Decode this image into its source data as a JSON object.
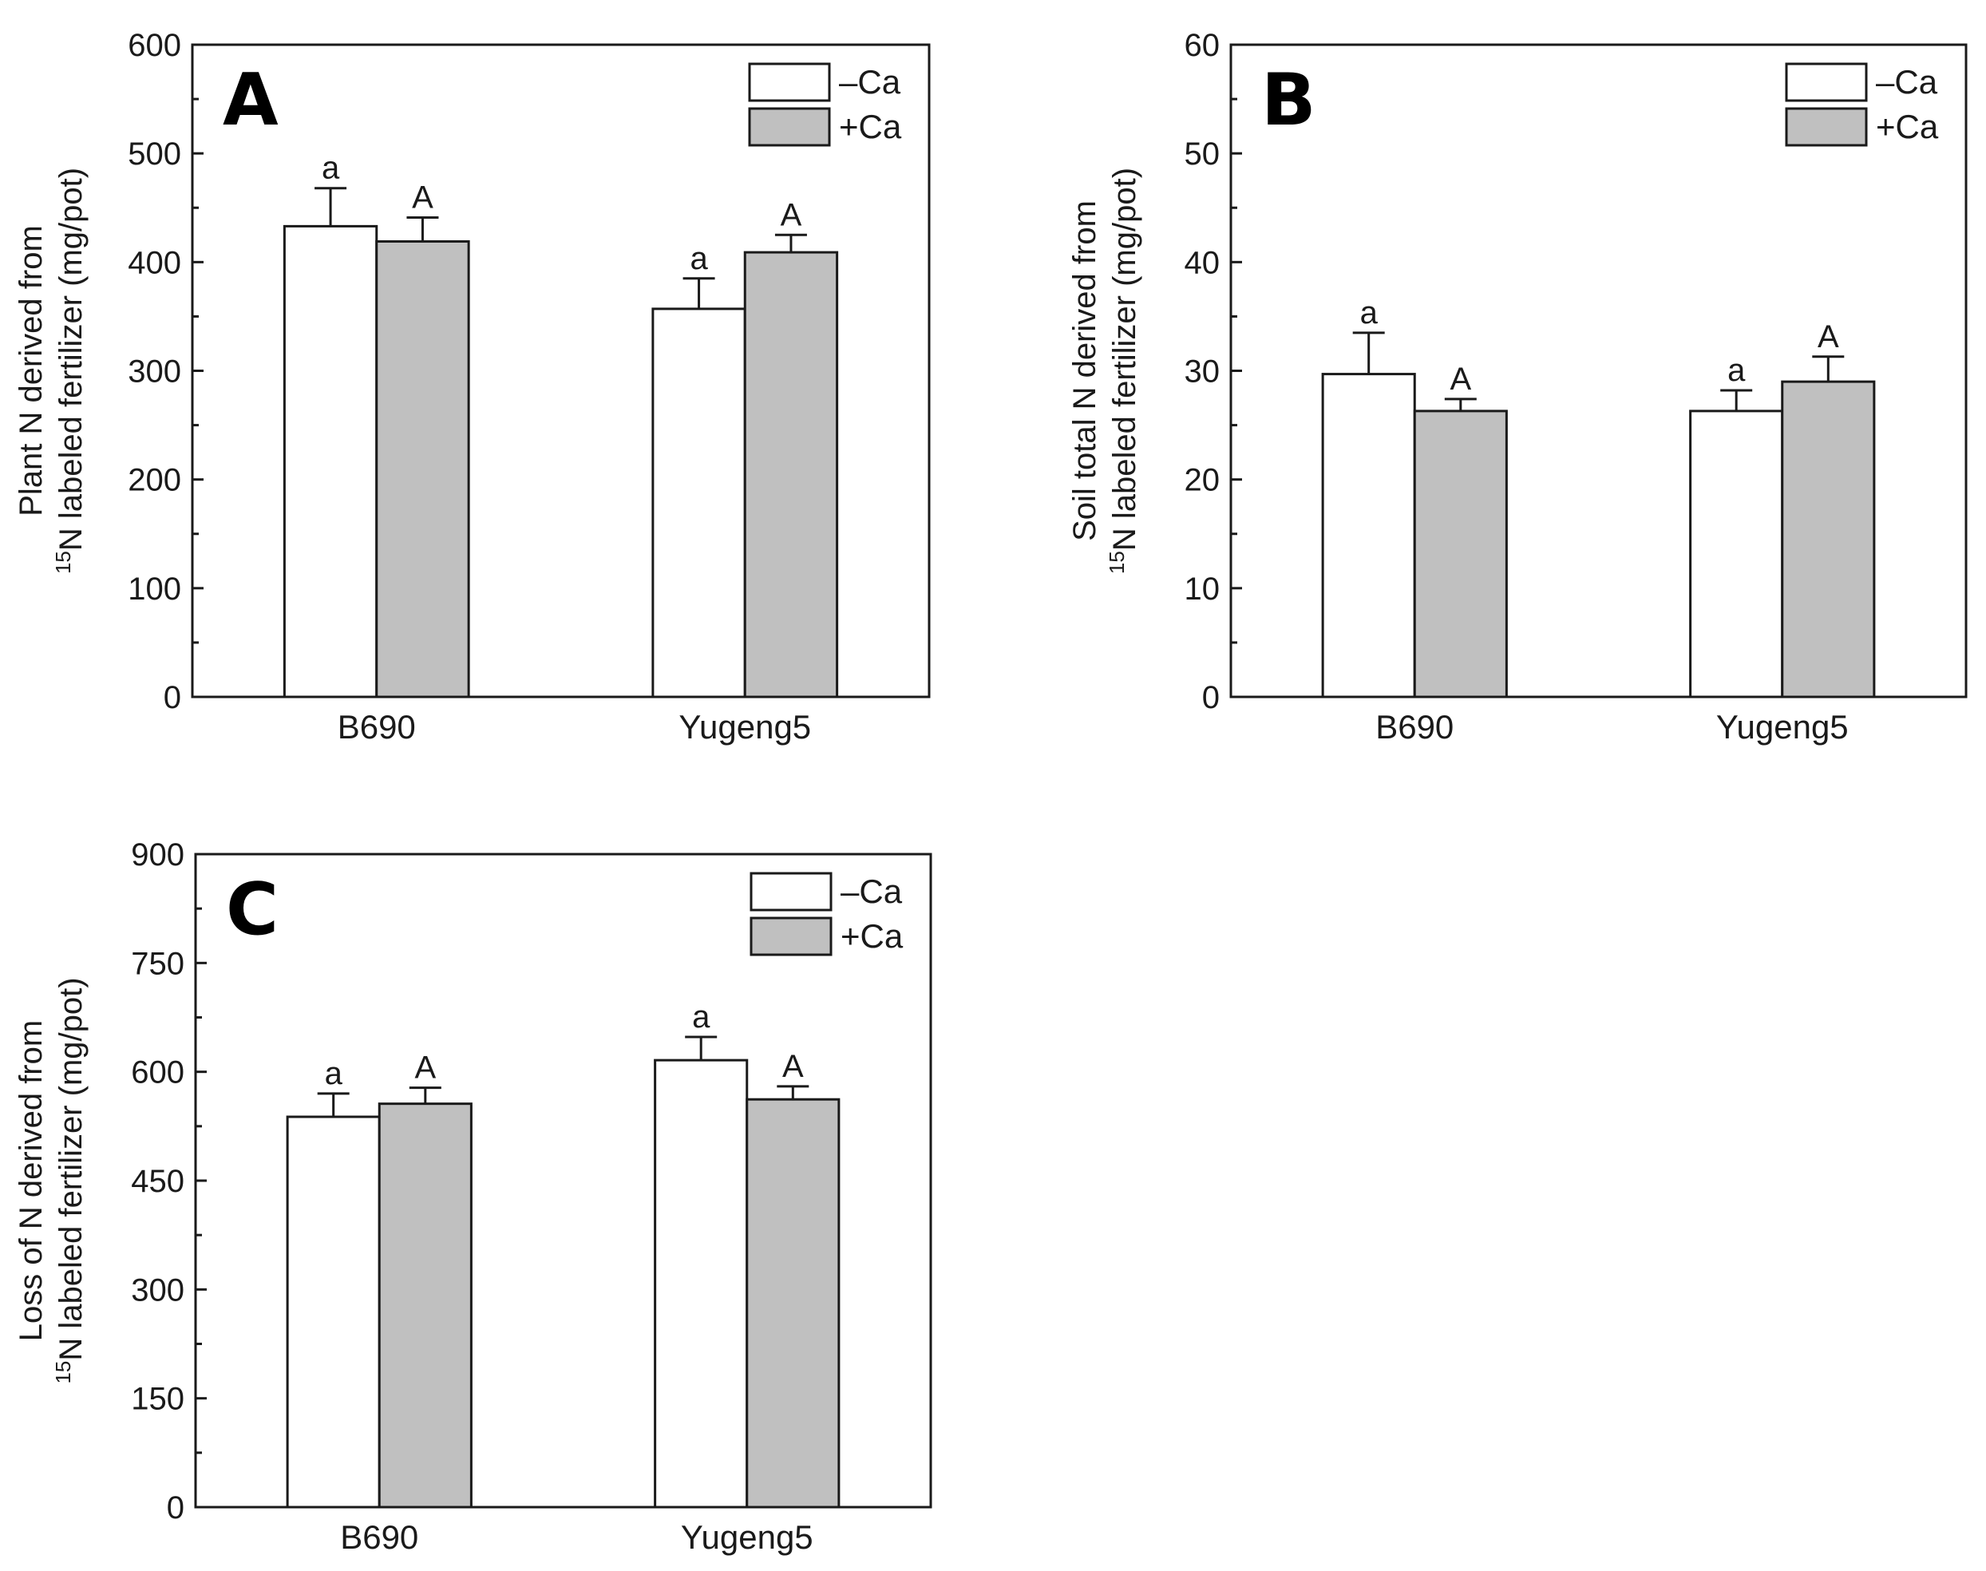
{
  "chart_data": [
    {
      "type": "bar",
      "panel": "A",
      "categories": [
        "B690",
        "Yugeng5"
      ],
      "series": [
        {
          "name": "–Ca",
          "values": [
            433,
            357
          ],
          "errors": [
            35,
            28
          ],
          "letters": [
            "a",
            "a"
          ]
        },
        {
          "name": "+Ca",
          "values": [
            419,
            409
          ],
          "errors": [
            22,
            16
          ],
          "letters": [
            "A",
            "A"
          ]
        }
      ],
      "ylabel_line1": "Plant N derived from",
      "ylabel_sup": "15",
      "ylabel_line2": "N labeled fertilizer (mg/pot)",
      "ylim": [
        0,
        600
      ],
      "yticks": [
        0,
        100,
        200,
        300,
        400,
        500,
        600
      ],
      "minor_step": 50,
      "legend_position": "top-right",
      "colors": {
        "minus_ca": "#ffffff",
        "plus_ca": "#c0c0c0",
        "axis": "#1a1a1a"
      }
    },
    {
      "type": "bar",
      "panel": "B",
      "categories": [
        "B690",
        "Yugeng5"
      ],
      "series": [
        {
          "name": "–Ca",
          "values": [
            29.7,
            26.3
          ],
          "errors": [
            3.8,
            1.9
          ],
          "letters": [
            "a",
            "a"
          ]
        },
        {
          "name": "+Ca",
          "values": [
            26.3,
            29.0
          ],
          "errors": [
            1.1,
            2.3
          ],
          "letters": [
            "A",
            "A"
          ]
        }
      ],
      "ylabel_line1": "Soil total N derived from",
      "ylabel_sup": "15",
      "ylabel_line2": "N labeled fertilizer (mg/pot)",
      "ylim": [
        0,
        60
      ],
      "yticks": [
        0,
        10,
        20,
        30,
        40,
        50,
        60
      ],
      "minor_step": 5,
      "legend_position": "top-right",
      "colors": {
        "minus_ca": "#ffffff",
        "plus_ca": "#c0c0c0",
        "axis": "#1a1a1a"
      }
    },
    {
      "type": "bar",
      "panel": "C",
      "categories": [
        "B690",
        "Yugeng5"
      ],
      "series": [
        {
          "name": "–Ca",
          "values": [
            538,
            616
          ],
          "errors": [
            32,
            32
          ],
          "letters": [
            "a",
            "a"
          ]
        },
        {
          "name": "+Ca",
          "values": [
            556,
            562
          ],
          "errors": [
            22,
            18
          ],
          "letters": [
            "A",
            "A"
          ]
        }
      ],
      "ylabel_line1": "Loss of N derived from",
      "ylabel_sup": "15",
      "ylabel_line2": "N labeled fertilizer (mg/pot)",
      "ylim": [
        0,
        900
      ],
      "yticks": [
        0,
        150,
        300,
        450,
        600,
        750,
        900
      ],
      "minor_step": 75,
      "legend_position": "top-right",
      "colors": {
        "minus_ca": "#ffffff",
        "plus_ca": "#c0c0c0",
        "axis": "#1a1a1a"
      }
    }
  ]
}
